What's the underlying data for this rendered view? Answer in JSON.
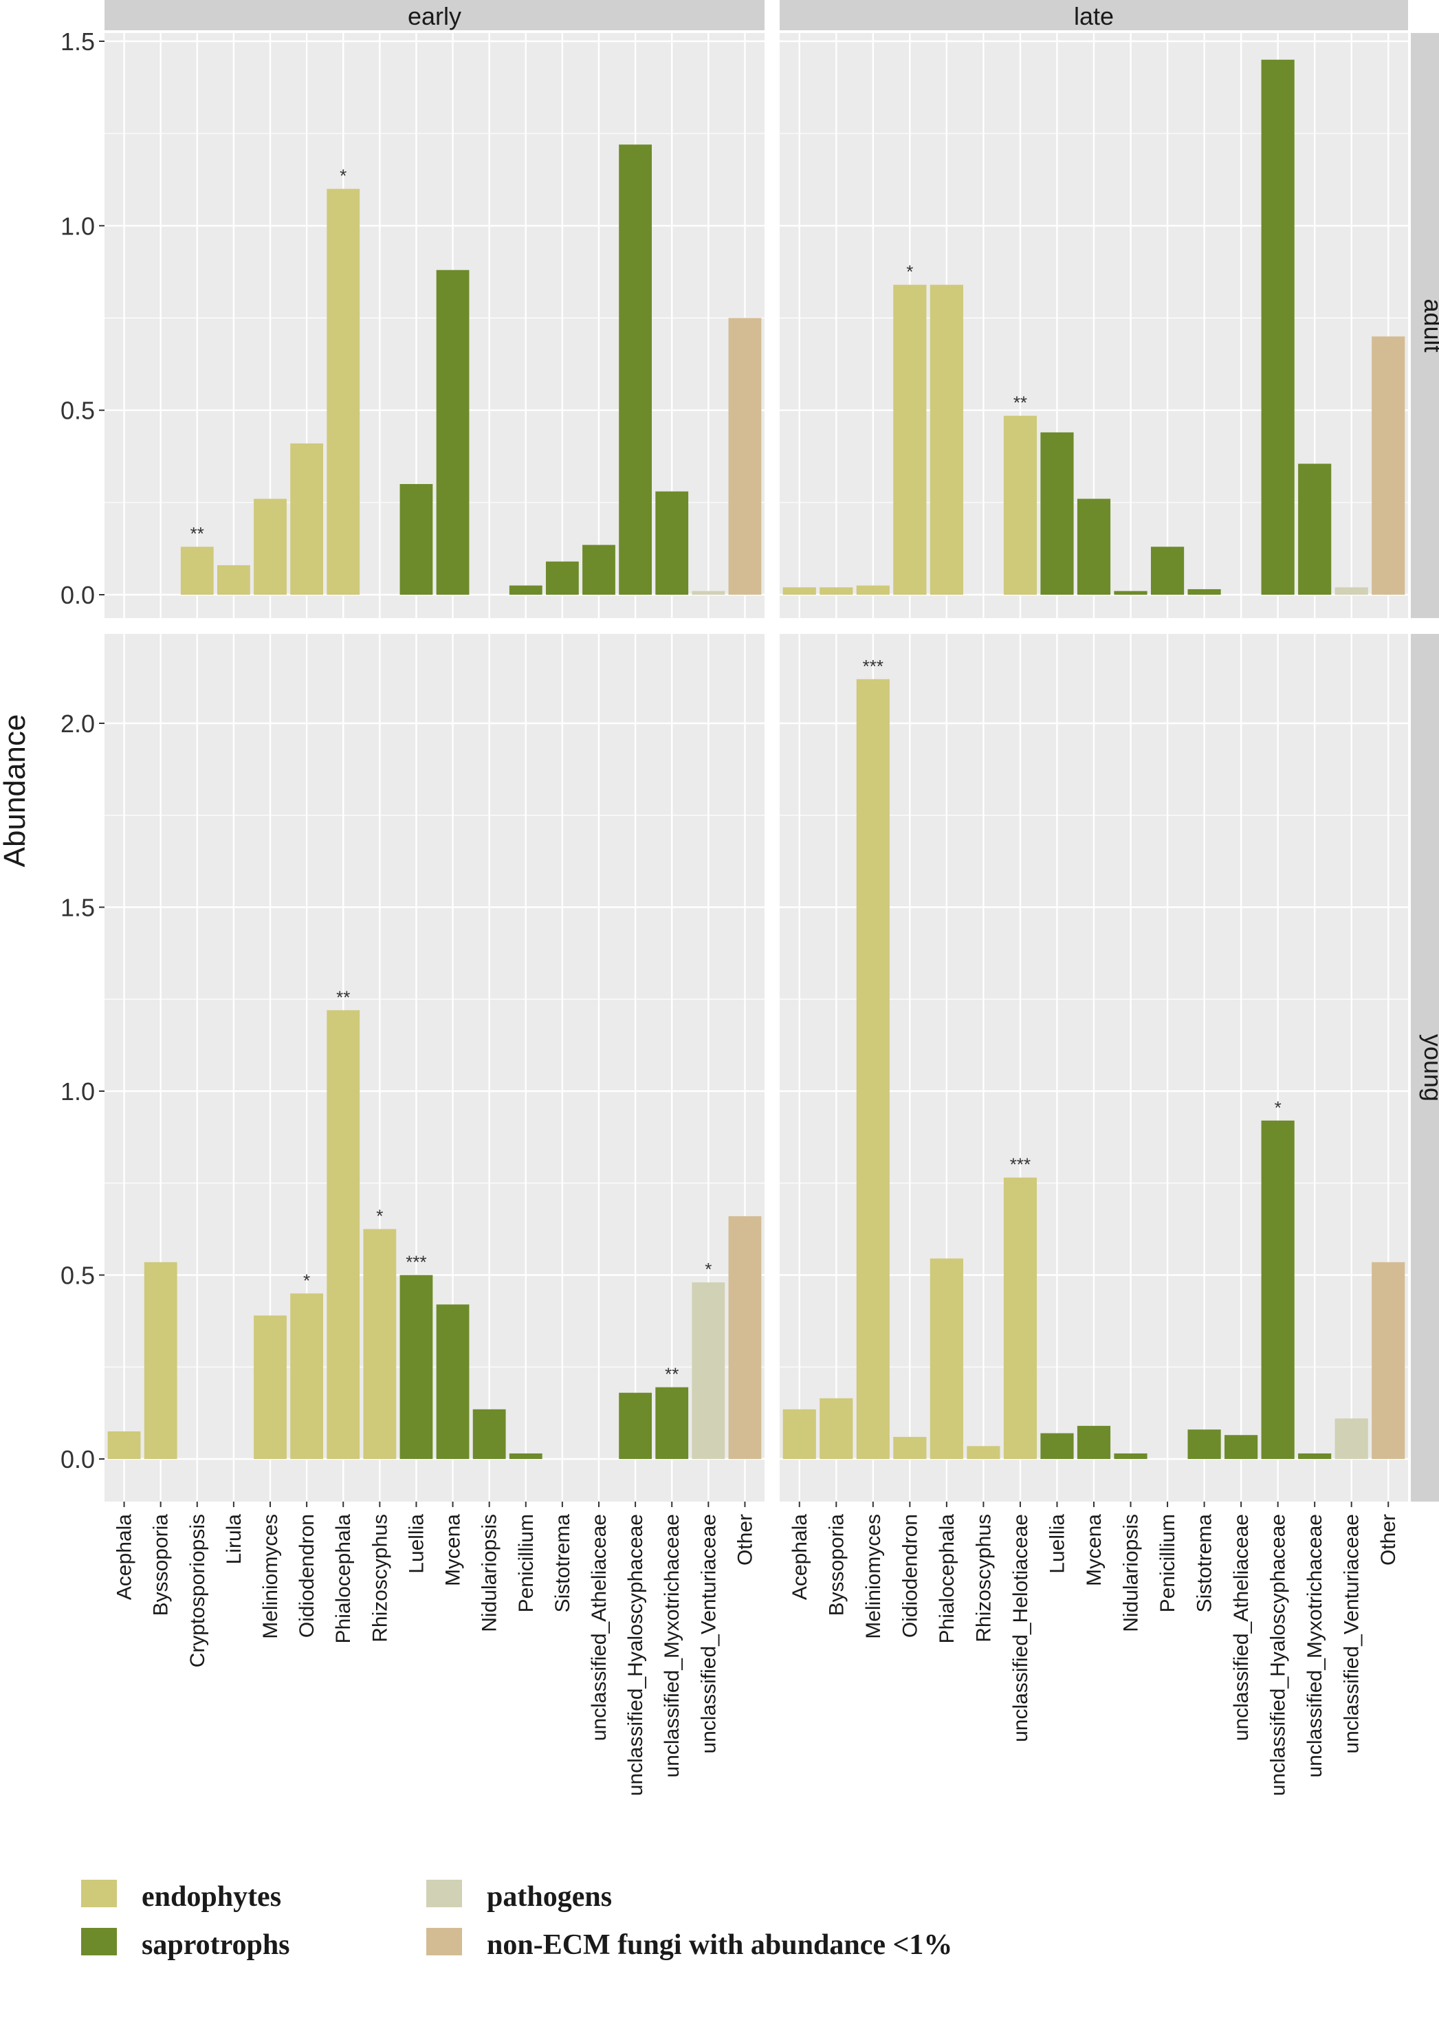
{
  "chart_data": {
    "type": "bar",
    "ylabel": "Abundance",
    "facet_columns": [
      "early",
      "late"
    ],
    "facet_rows": [
      "adult",
      "young"
    ],
    "categories_early": [
      "Acephala",
      "Byssoporia",
      "Cryptosporiopsis",
      "Lirula",
      "Meliniomyces",
      "Oidiodendron",
      "Phialocephala",
      "Rhizoscyphus",
      "Luellia",
      "Mycena",
      "Nidulariopsis",
      "Penicillium",
      "Sistotrema",
      "unclassified_Atheliaceae",
      "unclassified_Hyaloscyphaceae",
      "unclassified_Myxotrichaceae",
      "unclassified_Venturiaceae",
      "Other"
    ],
    "categories_late": [
      "Acephala",
      "Byssoporia",
      "Meliniomyces",
      "Oidiodendron",
      "Phialocephala",
      "Rhizoscyphus",
      "unclassified_Helotiaceae",
      "Luellia",
      "Mycena",
      "Nidulariopsis",
      "Penicillium",
      "Sistotrema",
      "unclassified_Atheliaceae",
      "unclassified_Hyaloscyphaceae",
      "unclassified_Myxotrichaceae",
      "unclassified_Venturiaceae",
      "Other"
    ],
    "panels": [
      {
        "row": "adult",
        "col": "early",
        "ylim": [
          0,
          1.5
        ],
        "ticks": [
          "0.0",
          "0.5",
          "1.0",
          "1.5"
        ],
        "bars": [
          {
            "cat": "Acephala",
            "value": 0,
            "group": "endophytes",
            "sig": ""
          },
          {
            "cat": "Byssoporia",
            "value": 0,
            "group": "endophytes",
            "sig": ""
          },
          {
            "cat": "Cryptosporiopsis",
            "value": 0.13,
            "group": "endophytes",
            "sig": "**"
          },
          {
            "cat": "Lirula",
            "value": 0.08,
            "group": "endophytes",
            "sig": ""
          },
          {
            "cat": "Meliniomyces",
            "value": 0.26,
            "group": "endophytes",
            "sig": ""
          },
          {
            "cat": "Oidiodendron",
            "value": 0.41,
            "group": "endophytes",
            "sig": ""
          },
          {
            "cat": "Phialocephala",
            "value": 1.1,
            "group": "endophytes",
            "sig": "*"
          },
          {
            "cat": "Rhizoscyphus",
            "value": 0,
            "group": "endophytes",
            "sig": ""
          },
          {
            "cat": "Luellia",
            "value": 0.3,
            "group": "saprotrophs",
            "sig": ""
          },
          {
            "cat": "Mycena",
            "value": 0.88,
            "group": "saprotrophs",
            "sig": ""
          },
          {
            "cat": "Nidulariopsis",
            "value": 0,
            "group": "saprotrophs",
            "sig": ""
          },
          {
            "cat": "Penicillium",
            "value": 0.025,
            "group": "saprotrophs",
            "sig": ""
          },
          {
            "cat": "Sistotrema",
            "value": 0.09,
            "group": "saprotrophs",
            "sig": ""
          },
          {
            "cat": "unclassified_Atheliaceae",
            "value": 0.135,
            "group": "saprotrophs",
            "sig": ""
          },
          {
            "cat": "unclassified_Hyaloscyphaceae",
            "value": 1.22,
            "group": "saprotrophs",
            "sig": ""
          },
          {
            "cat": "unclassified_Myxotrichaceae",
            "value": 0.28,
            "group": "saprotrophs",
            "sig": ""
          },
          {
            "cat": "unclassified_Venturiaceae",
            "value": 0.01,
            "group": "pathogens",
            "sig": ""
          },
          {
            "cat": "Other",
            "value": 0.75,
            "group": "other",
            "sig": ""
          }
        ]
      },
      {
        "row": "adult",
        "col": "late",
        "ylim": [
          0,
          1.5
        ],
        "ticks": [
          "0.0",
          "0.5",
          "1.0",
          "1.5"
        ],
        "bars": [
          {
            "cat": "Acephala",
            "value": 0.02,
            "group": "endophytes",
            "sig": ""
          },
          {
            "cat": "Byssoporia",
            "value": 0.02,
            "group": "endophytes",
            "sig": ""
          },
          {
            "cat": "Meliniomyces",
            "value": 0.025,
            "group": "endophytes",
            "sig": ""
          },
          {
            "cat": "Oidiodendron",
            "value": 0.84,
            "group": "endophytes",
            "sig": "*"
          },
          {
            "cat": "Phialocephala",
            "value": 0.84,
            "group": "endophytes",
            "sig": ""
          },
          {
            "cat": "Rhizoscyphus",
            "value": 0,
            "group": "endophytes",
            "sig": ""
          },
          {
            "cat": "unclassified_Helotiaceae",
            "value": 0.485,
            "group": "endophytes",
            "sig": "**"
          },
          {
            "cat": "Luellia",
            "value": 0.44,
            "group": "saprotrophs",
            "sig": ""
          },
          {
            "cat": "Mycena",
            "value": 0.26,
            "group": "saprotrophs",
            "sig": ""
          },
          {
            "cat": "Nidulariopsis",
            "value": 0.01,
            "group": "saprotrophs",
            "sig": ""
          },
          {
            "cat": "Penicillium",
            "value": 0.13,
            "group": "saprotrophs",
            "sig": ""
          },
          {
            "cat": "Sistotrema",
            "value": 0.015,
            "group": "saprotrophs",
            "sig": ""
          },
          {
            "cat": "unclassified_Atheliaceae",
            "value": 0,
            "group": "saprotrophs",
            "sig": ""
          },
          {
            "cat": "unclassified_Hyaloscyphaceae",
            "value": 1.45,
            "group": "saprotrophs",
            "sig": ""
          },
          {
            "cat": "unclassified_Myxotrichaceae",
            "value": 0.355,
            "group": "saprotrophs",
            "sig": ""
          },
          {
            "cat": "unclassified_Venturiaceae",
            "value": 0.02,
            "group": "pathogens",
            "sig": ""
          },
          {
            "cat": "Other",
            "value": 0.7,
            "group": "other",
            "sig": ""
          }
        ]
      },
      {
        "row": "young",
        "col": "early",
        "ylim": [
          0,
          2.2
        ],
        "ticks": [
          "0.0",
          "0.5",
          "1.0",
          "1.5",
          "2.0"
        ],
        "bars": [
          {
            "cat": "Acephala",
            "value": 0.075,
            "group": "endophytes",
            "sig": ""
          },
          {
            "cat": "Byssoporia",
            "value": 0.535,
            "group": "endophytes",
            "sig": ""
          },
          {
            "cat": "Cryptosporiopsis",
            "value": 0,
            "group": "endophytes",
            "sig": ""
          },
          {
            "cat": "Lirula",
            "value": 0,
            "group": "endophytes",
            "sig": ""
          },
          {
            "cat": "Meliniomyces",
            "value": 0.39,
            "group": "endophytes",
            "sig": ""
          },
          {
            "cat": "Oidiodendron",
            "value": 0.45,
            "group": "endophytes",
            "sig": "*"
          },
          {
            "cat": "Phialocephala",
            "value": 1.22,
            "group": "endophytes",
            "sig": "**"
          },
          {
            "cat": "Rhizoscyphus",
            "value": 0.625,
            "group": "endophytes",
            "sig": "*"
          },
          {
            "cat": "Luellia",
            "value": 0.5,
            "group": "saprotrophs",
            "sig": "***"
          },
          {
            "cat": "Mycena",
            "value": 0.42,
            "group": "saprotrophs",
            "sig": ""
          },
          {
            "cat": "Nidulariopsis",
            "value": 0.135,
            "group": "saprotrophs",
            "sig": ""
          },
          {
            "cat": "Penicillium",
            "value": 0.015,
            "group": "saprotrophs",
            "sig": ""
          },
          {
            "cat": "Sistotrema",
            "value": 0,
            "group": "saprotrophs",
            "sig": ""
          },
          {
            "cat": "unclassified_Atheliaceae",
            "value": 0,
            "group": "saprotrophs",
            "sig": ""
          },
          {
            "cat": "unclassified_Hyaloscyphaceae",
            "value": 0.18,
            "group": "saprotrophs",
            "sig": ""
          },
          {
            "cat": "unclassified_Myxotrichaceae",
            "value": 0.195,
            "group": "saprotrophs",
            "sig": "**"
          },
          {
            "cat": "unclassified_Venturiaceae",
            "value": 0.48,
            "group": "pathogens",
            "sig": "*"
          },
          {
            "cat": "Other",
            "value": 0.66,
            "group": "other",
            "sig": ""
          }
        ]
      },
      {
        "row": "young",
        "col": "late",
        "ylim": [
          0,
          2.2
        ],
        "ticks": [
          "0.0",
          "0.5",
          "1.0",
          "1.5",
          "2.0"
        ],
        "bars": [
          {
            "cat": "Acephala",
            "value": 0.135,
            "group": "endophytes",
            "sig": ""
          },
          {
            "cat": "Byssoporia",
            "value": 0.165,
            "group": "endophytes",
            "sig": ""
          },
          {
            "cat": "Meliniomyces",
            "value": 2.12,
            "group": "endophytes",
            "sig": "***"
          },
          {
            "cat": "Oidiodendron",
            "value": 0.06,
            "group": "endophytes",
            "sig": ""
          },
          {
            "cat": "Phialocephala",
            "value": 0.545,
            "group": "endophytes",
            "sig": ""
          },
          {
            "cat": "Rhizoscyphus",
            "value": 0.035,
            "group": "endophytes",
            "sig": ""
          },
          {
            "cat": "unclassified_Helotiaceae",
            "value": 0.765,
            "group": "endophytes",
            "sig": "***"
          },
          {
            "cat": "Luellia",
            "value": 0.07,
            "group": "saprotrophs",
            "sig": ""
          },
          {
            "cat": "Mycena",
            "value": 0.09,
            "group": "saprotrophs",
            "sig": ""
          },
          {
            "cat": "Nidulariopsis",
            "value": 0.015,
            "group": "saprotrophs",
            "sig": ""
          },
          {
            "cat": "Penicillium",
            "value": 0,
            "group": "saprotrophs",
            "sig": ""
          },
          {
            "cat": "Sistotrema",
            "value": 0.08,
            "group": "saprotrophs",
            "sig": ""
          },
          {
            "cat": "unclassified_Atheliaceae",
            "value": 0.065,
            "group": "saprotrophs",
            "sig": ""
          },
          {
            "cat": "unclassified_Hyaloscyphaceae",
            "value": 0.92,
            "group": "saprotrophs",
            "sig": "*"
          },
          {
            "cat": "unclassified_Myxotrichaceae",
            "value": 0.015,
            "group": "saprotrophs",
            "sig": ""
          },
          {
            "cat": "unclassified_Venturiaceae",
            "value": 0.11,
            "group": "pathogens",
            "sig": ""
          },
          {
            "cat": "Other",
            "value": 0.535,
            "group": "other",
            "sig": ""
          }
        ]
      }
    ],
    "legend": [
      {
        "group": "endophytes",
        "label": "endophytes"
      },
      {
        "group": "saprotrophs",
        "label": "saprotrophs"
      },
      {
        "group": "pathogens",
        "label": "pathogens"
      },
      {
        "group": "other",
        "label": "non-ECM fungi with abundance <1%"
      }
    ]
  },
  "colors": {
    "endophytes": "#CFC97A",
    "saprotrophs": "#6D8B2A",
    "pathogens": "#D1D1B5",
    "other": "#D3BC93",
    "panel_bg": "#EBEBEB",
    "strip_bg": "#D0D0D0",
    "grid": "#FFFFFF"
  }
}
